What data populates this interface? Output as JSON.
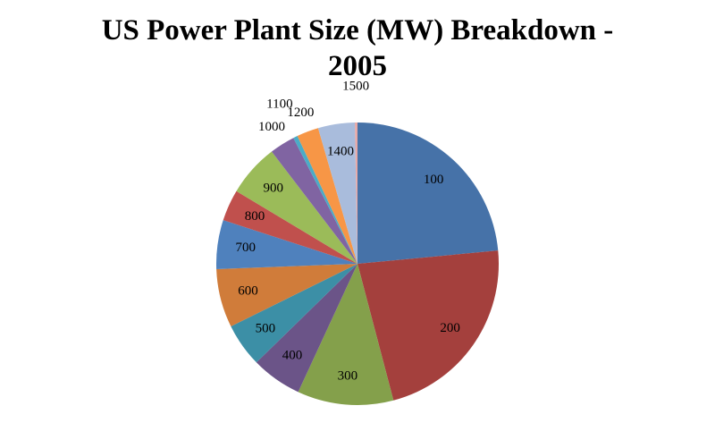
{
  "chart_data": {
    "type": "pie",
    "title": "US Power Plant Size (MW) Breakdown - 2005",
    "categories": [
      "100",
      "200",
      "300",
      "400",
      "500",
      "600",
      "700",
      "800",
      "900",
      "1000",
      "1100",
      "1200",
      "1400",
      "1500"
    ],
    "values": [
      23.5,
      22.4,
      11,
      5.8,
      5,
      6.7,
      5.6,
      3.6,
      6,
      2.9,
      0.5,
      2.5,
      4.2,
      0.3
    ],
    "colors": [
      "#4672a8",
      "#a4403d",
      "#84a04b",
      "#6b5488",
      "#3c8fa6",
      "#d07c3a",
      "#4f81bd",
      "#c0504d",
      "#9bbb59",
      "#8064a2",
      "#4bacc6",
      "#f79646",
      "#a9bcdc",
      "#e6a9a8"
    ]
  }
}
